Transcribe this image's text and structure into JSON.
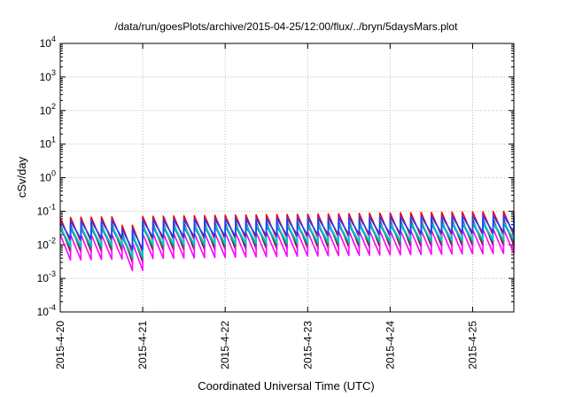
{
  "chart_data": {
    "type": "line",
    "title": "/data/run/goesPlots/archive/2015-04-25/12:00/flux/../bryn/5daysMars.plot",
    "xlabel": "Coordinated Universal Time (UTC)",
    "ylabel": "cSv/day",
    "x_range": [
      "2015-04-20 00:00",
      "2015-04-25 12:00"
    ],
    "x_ticks": [
      "2015-4-20",
      "2015-4-21",
      "2015-4-22",
      "2015-4-23",
      "2015-4-24",
      "2015-4-25"
    ],
    "y_scale": "log",
    "ylim": [
      0.0001,
      10000
    ],
    "y_ticks": [
      {
        "base": "10",
        "exp": "-4"
      },
      {
        "base": "10",
        "exp": "-3"
      },
      {
        "base": "10",
        "exp": "-2"
      },
      {
        "base": "10",
        "exp": "-1"
      },
      {
        "base": "10",
        "exp": "0"
      },
      {
        "base": "10",
        "exp": "1"
      },
      {
        "base": "10",
        "exp": "2"
      },
      {
        "base": "10",
        "exp": "3"
      },
      {
        "base": "10",
        "exp": "4"
      }
    ],
    "grid": true,
    "sawtooth_period_hours": 3,
    "series": [
      {
        "color": "#e8001e",
        "peak_start": 0.065,
        "peak_end": 0.1,
        "trough": 0.012
      },
      {
        "color": "#7a1a2a",
        "peak_start": 0.04,
        "peak_end": 0.06,
        "trough": 0.006
      },
      {
        "color": "#ff00ff",
        "peak_start": 0.02,
        "peak_end": 0.03,
        "trough": 0.0035
      },
      {
        "color": "#2a8a8a",
        "peak_start": 0.03,
        "peak_end": 0.045,
        "trough": 0.008
      },
      {
        "color": "#00c8d2",
        "peak_start": 0.035,
        "peak_end": 0.05,
        "trough": 0.009
      },
      {
        "color": "#1e3cff",
        "peak_start": 0.05,
        "peak_end": 0.075,
        "trough": 0.015
      }
    ]
  }
}
